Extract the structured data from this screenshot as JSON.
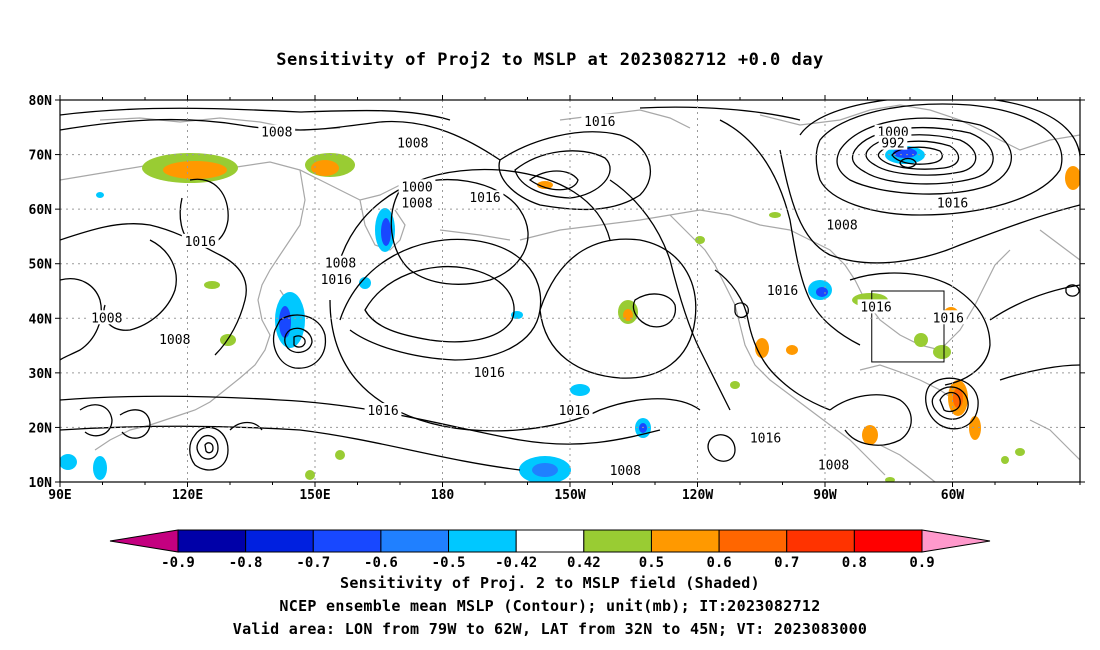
{
  "title": "Sensitivity of Proj2 to MSLP at 2023082712 +0.0 day",
  "lat_labels": [
    "80N",
    "70N",
    "60N",
    "50N",
    "40N",
    "30N",
    "20N",
    "10N"
  ],
  "lon_labels": [
    "90E",
    "120E",
    "150E",
    "180",
    "150W",
    "120W",
    "90W",
    "60W"
  ],
  "contour_labels": [
    {
      "text": "1008",
      "lon": 141,
      "lat": 74
    },
    {
      "text": "1008",
      "lon": 173,
      "lat": 72
    },
    {
      "text": "1016",
      "lon": -143,
      "lat": 76
    },
    {
      "text": "1000",
      "lon": -74,
      "lat": 74
    },
    {
      "text": "992",
      "lon": -74,
      "lat": 72
    },
    {
      "text": "1000",
      "lon": 174,
      "lat": 64
    },
    {
      "text": "1008",
      "lon": 174,
      "lat": 61
    },
    {
      "text": "1016",
      "lon": -170,
      "lat": 62
    },
    {
      "text": "1016",
      "lon": -60,
      "lat": 61
    },
    {
      "text": "1008",
      "lon": -86,
      "lat": 57
    },
    {
      "text": "1016",
      "lon": 123,
      "lat": 54
    },
    {
      "text": "1008",
      "lon": 156,
      "lat": 50
    },
    {
      "text": "1016",
      "lon": 155,
      "lat": 47
    },
    {
      "text": "1016",
      "lon": -100,
      "lat": 45
    },
    {
      "text": "1016",
      "lon": -78,
      "lat": 42
    },
    {
      "text": "1016",
      "lon": -61,
      "lat": 40
    },
    {
      "text": "1008",
      "lon": 101,
      "lat": 40
    },
    {
      "text": "1008",
      "lon": 117,
      "lat": 36
    },
    {
      "text": "1016",
      "lon": -169,
      "lat": 30
    },
    {
      "text": "1016",
      "lon": 166,
      "lat": 23
    },
    {
      "text": "1016",
      "lon": -149,
      "lat": 23
    },
    {
      "text": "1016",
      "lon": -104,
      "lat": 18
    },
    {
      "text": "1008",
      "lon": -88,
      "lat": 13
    },
    {
      "text": "1008",
      "lon": -137,
      "lat": 12
    }
  ],
  "valid_area": {
    "lon_min": -79,
    "lon_max": -62,
    "lat_min": 32,
    "lat_max": 45
  },
  "colorbar": {
    "labels": [
      "-0.9",
      "-0.8",
      "-0.7",
      "-0.6",
      "-0.5",
      "-0.42",
      "0.42",
      "0.5",
      "0.6",
      "0.7",
      "0.8",
      "0.9"
    ],
    "colors": [
      "#c40080",
      "#0000a8",
      "#0020e0",
      "#1848ff",
      "#2080ff",
      "#00c8ff",
      "#ffffff",
      "#99cc33",
      "#ff9900",
      "#ff6600",
      "#ff3300",
      "#ff0000",
      "#ff99cc"
    ]
  },
  "captions": [
    "Sensitivity of Proj. 2 to MSLP field (Shaded)",
    "NCEP ensemble mean MSLP (Contour); unit(mb); IT:2023082712",
    "Valid area: LON from 79W to 62W, LAT from 32N to 45N; VT: 2023083000"
  ]
}
